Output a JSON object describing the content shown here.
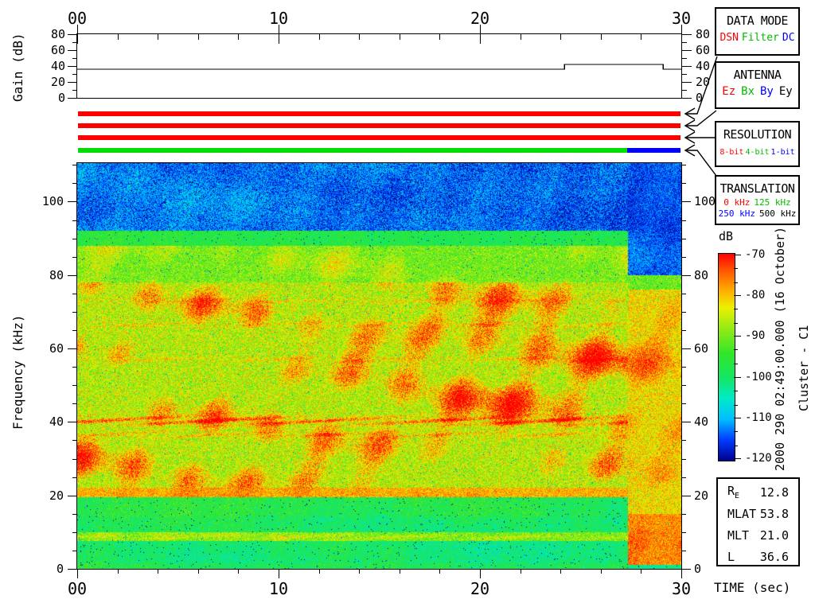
{
  "colors": {
    "red": "#ff0000",
    "text_green": "#00bb00",
    "bar_green": "#00dd00",
    "blue": "#0000ff",
    "black": "#000000"
  },
  "panels": [
    {
      "title": "DATA MODE",
      "items": [
        {
          "label": "DSN",
          "color": "#ff0000"
        },
        {
          "label": "Filter",
          "color": "#00bb00"
        },
        {
          "label": "DC",
          "color": "#0000ff"
        }
      ]
    },
    {
      "title": "ANTENNA",
      "items": [
        {
          "label": "Ez",
          "color": "#ff0000"
        },
        {
          "label": "Bx",
          "color": "#00bb00"
        },
        {
          "label": "By",
          "color": "#0000ff"
        },
        {
          "label": "Ey",
          "color": "#000000"
        }
      ]
    },
    {
      "title": "RESOLUTION",
      "items": [
        {
          "label": "8-bit",
          "color": "#ff0000"
        },
        {
          "label": "4-bit",
          "color": "#00bb00"
        },
        {
          "label": "1-bit",
          "color": "#0000ff"
        }
      ]
    },
    {
      "title": "TRANSLATION",
      "rows": [
        [
          {
            "label": "0 kHz",
            "color": "#ff0000"
          },
          {
            "label": "125 kHz",
            "color": "#00bb00"
          }
        ],
        [
          {
            "label": "250 kHz",
            "color": "#0000ff"
          },
          {
            "label": "500 kHz",
            "color": "#000000"
          }
        ]
      ]
    }
  ],
  "status_bars": [
    {
      "name": "data-mode-bar",
      "segments": [
        {
          "t0": 0,
          "t1": 30,
          "color": "#ff0000"
        }
      ]
    },
    {
      "name": "antenna-bar",
      "segments": [
        {
          "t0": 0,
          "t1": 30,
          "color": "#ff0000"
        }
      ]
    },
    {
      "name": "resolution-bar",
      "segments": [
        {
          "t0": 0,
          "t1": 30,
          "color": "#ff0000"
        }
      ]
    },
    {
      "name": "translation-bar",
      "segments": [
        {
          "t0": 0,
          "t1": 27.35,
          "color": "#00dd00"
        },
        {
          "t0": 27.35,
          "t1": 30,
          "color": "#0000ff"
        }
      ]
    }
  ],
  "side_text": {
    "datetime": "2000 290 02:49:00.000 (16 October)",
    "spacecraft": "Cluster - C1"
  },
  "info_box": {
    "rows": [
      {
        "label": "R",
        "sub": "E",
        "value": "12.8"
      },
      {
        "label": "MLAT",
        "value": "53.8"
      },
      {
        "label": "MLT",
        "value": "21.0"
      },
      {
        "label": "L",
        "value": "36.6"
      }
    ]
  },
  "bottom_axis_label": "TIME (sec)",
  "chart_data": [
    {
      "type": "line",
      "title": "receiver gain vs time",
      "ylabel": "Gain (dB)",
      "xlim": [
        0,
        30
      ],
      "ylim": [
        0,
        80
      ],
      "ytick_values": [
        0,
        20,
        40,
        60,
        80
      ],
      "ytick_labels": [
        "0",
        "20",
        "40",
        "60",
        "80"
      ],
      "xtick_values": [
        0,
        10,
        20,
        30
      ],
      "xtick_labels": [
        "00",
        "10",
        "20",
        "30"
      ],
      "minor_xtick_step": 2,
      "minor_ytick_step": 10,
      "series": [
        {
          "name": "gain",
          "segments": [
            {
              "t0": 0,
              "t1": 24.2,
              "db": 36
            },
            {
              "t0": 24.2,
              "t1": 29.1,
              "db": 42
            },
            {
              "t0": 29.1,
              "t1": 30,
              "db": 36
            }
          ]
        }
      ]
    },
    {
      "type": "heatmap",
      "title": "wideband spectrogram",
      "xlabel": "TIME (sec)",
      "ylabel": "Frequency (kHz)",
      "xlim": [
        0,
        30
      ],
      "ylim": [
        0,
        110.5
      ],
      "xtick_values": [
        0,
        10,
        20,
        30
      ],
      "xtick_labels": [
        "00",
        "10",
        "20",
        "30"
      ],
      "minor_xtick_step": 2,
      "ytick_values": [
        0,
        20,
        40,
        60,
        80,
        100
      ],
      "ytick_labels": [
        "0",
        "20",
        "40",
        "60",
        "80",
        "100"
      ],
      "minor_ytick_step": 5,
      "colorbar": {
        "label": "dB",
        "min": -120,
        "max": -70,
        "tick_values": [
          -70,
          -80,
          -90,
          -100,
          -110,
          -120
        ],
        "tick_labels": [
          "-70",
          "-80",
          "-90",
          "-100",
          "-110",
          "-120"
        ]
      },
      "segment_boundary_sec": 27.35,
      "bands_main": [
        {
          "f0": 92,
          "f1": 110.5,
          "mean": -113,
          "sigma": 5,
          "patch": 0
        },
        {
          "f0": 88,
          "f1": 92,
          "mean": -97,
          "sigma": 4,
          "patch": 0
        },
        {
          "f0": 78,
          "f1": 88,
          "mean": -90,
          "sigma": 5,
          "patch": 4
        },
        {
          "f0": 22,
          "f1": 78,
          "mean": -86,
          "sigma": 6,
          "patch": 8
        },
        {
          "f0": 19.5,
          "f1": 22,
          "mean": -79,
          "sigma": 4,
          "patch": 2
        },
        {
          "f0": 14,
          "f1": 19.5,
          "mean": -97,
          "sigma": 5,
          "patch": 0
        },
        {
          "f0": 10,
          "f1": 14,
          "mean": -99,
          "sigma": 5,
          "patch": 0
        },
        {
          "f0": 7.5,
          "f1": 10,
          "mean": -90,
          "sigma": 5,
          "patch": 2
        },
        {
          "f0": 1.5,
          "f1": 7.5,
          "mean": -100,
          "sigma": 5,
          "patch": 0
        },
        {
          "f0": 0,
          "f1": 1.5,
          "mean": -98,
          "sigma": 5,
          "patch": 0
        }
      ],
      "bands_right": [
        {
          "f0": 80,
          "f1": 110.5,
          "mean": -114,
          "sigma": 4,
          "patch": 0
        },
        {
          "f0": 76,
          "f1": 80,
          "mean": -90,
          "sigma": 5,
          "patch": 0
        },
        {
          "f0": 15,
          "f1": 76,
          "mean": -82,
          "sigma": 5,
          "patch": 4
        },
        {
          "f0": 1,
          "f1": 15,
          "mean": -77,
          "sigma": 4,
          "patch": 3
        },
        {
          "f0": 0,
          "f1": 1,
          "mean": -102,
          "sigma": 3,
          "patch": 0
        }
      ],
      "ridge_lines": [
        {
          "f": 40.3,
          "w": 1.3,
          "b": 12
        },
        {
          "f": 36.5,
          "w": 0.9,
          "b": 6
        },
        {
          "f": 57,
          "w": 0.8,
          "b": 4
        },
        {
          "f": 66.5,
          "w": 0.9,
          "b": 4
        },
        {
          "f": 73,
          "w": 0.8,
          "b": 3
        },
        {
          "f": 8.7,
          "w": 0.8,
          "b": 4
        }
      ],
      "colormap_stops": [
        {
          "v": -128,
          "c": [
            0,
            0,
            40
          ]
        },
        {
          "v": -120,
          "c": [
            0,
            0,
            145
          ]
        },
        {
          "v": -115,
          "c": [
            0,
            60,
            255
          ]
        },
        {
          "v": -110,
          "c": [
            0,
            190,
            255
          ]
        },
        {
          "v": -105,
          "c": [
            0,
            235,
            200
          ]
        },
        {
          "v": -100,
          "c": [
            20,
            230,
            100
          ]
        },
        {
          "v": -94,
          "c": [
            50,
            230,
            40
          ]
        },
        {
          "v": -88,
          "c": [
            150,
            235,
            20
          ]
        },
        {
          "v": -83,
          "c": [
            235,
            240,
            0
          ]
        },
        {
          "v": -79,
          "c": [
            255,
            175,
            0
          ]
        },
        {
          "v": -74,
          "c": [
            255,
            85,
            0
          ]
        },
        {
          "v": -70,
          "c": [
            255,
            0,
            0
          ]
        },
        {
          "v": -60,
          "c": [
            255,
            0,
            0
          ]
        }
      ]
    }
  ]
}
